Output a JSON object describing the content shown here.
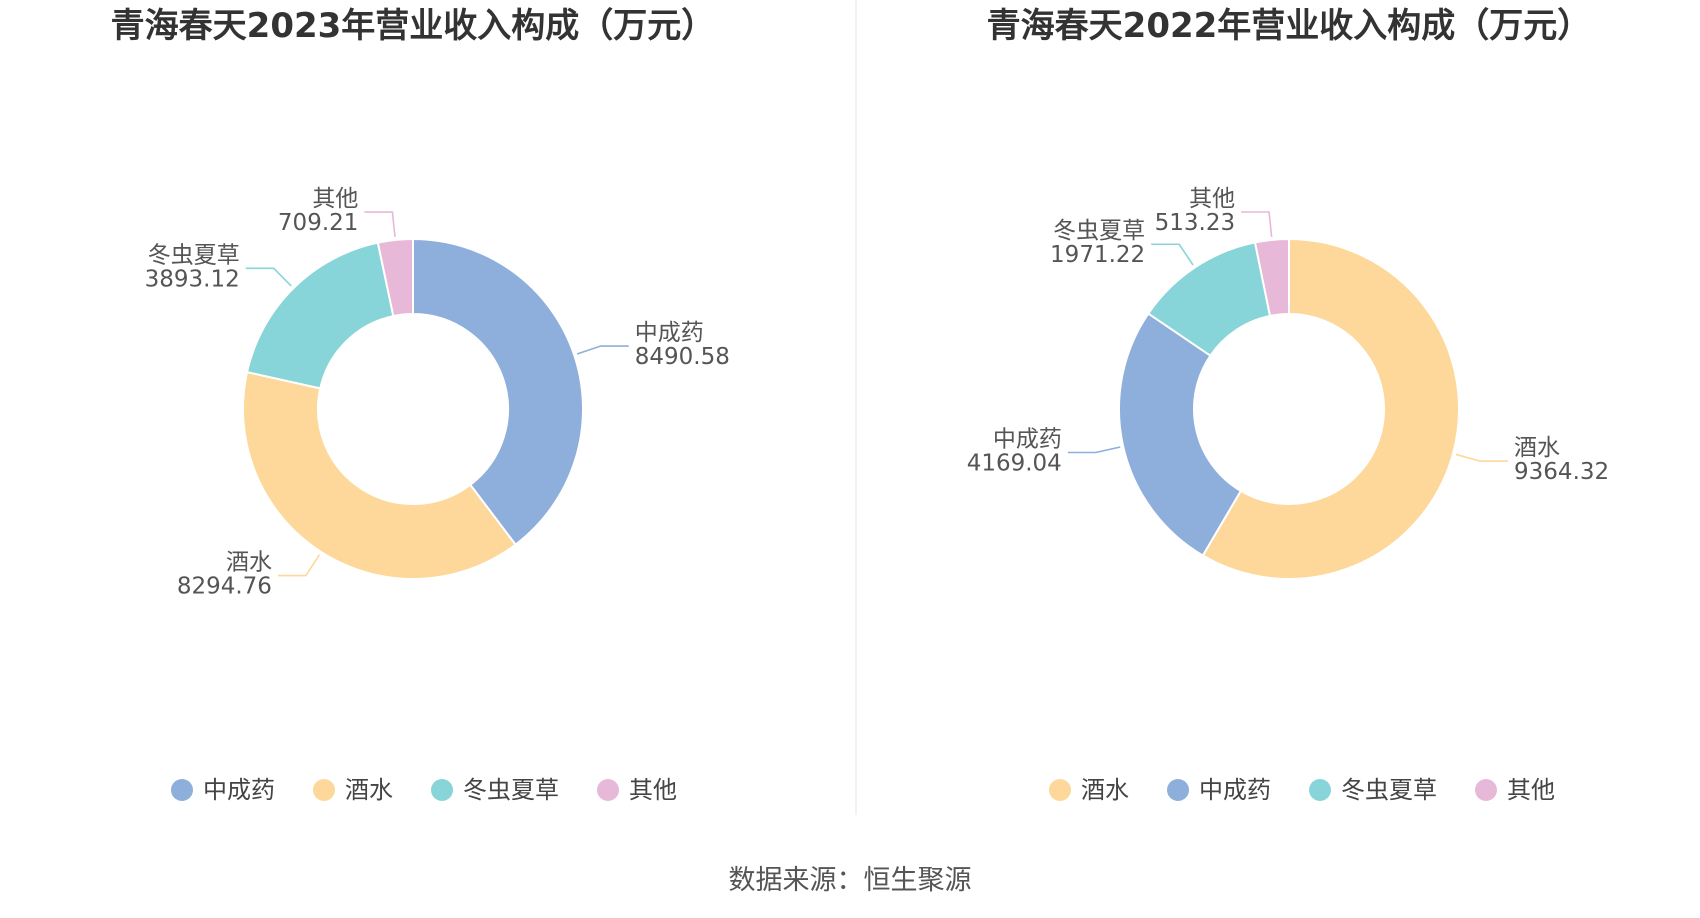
{
  "colors": {
    "中成药": "#8eaedc",
    "酒水": "#fdd89a",
    "冬虫夏草": "#87d5d8",
    "其他": "#e8b8d8"
  },
  "chart_data": [
    {
      "type": "pie",
      "style": "donut",
      "title": "青海春天2023年营业收入构成（万元）",
      "categories": [
        "中成药",
        "酒水",
        "冬虫夏草",
        "其他"
      ],
      "values": [
        8490.58,
        8294.76,
        3893.12,
        709.21
      ],
      "value_labels": [
        "8490.58",
        "8294.76",
        "3893.12",
        "709.21"
      ],
      "legend": {
        "placement": "bottom",
        "items": [
          "中成药",
          "酒水",
          "冬虫夏草",
          "其他"
        ]
      }
    },
    {
      "type": "pie",
      "style": "donut",
      "title": "青海春天2022年营业收入构成（万元）",
      "categories": [
        "酒水",
        "中成药",
        "冬虫夏草",
        "其他"
      ],
      "values": [
        9364.32,
        4169.04,
        1971.22,
        513.23
      ],
      "value_labels": [
        "9364.32",
        "4169.04",
        "1971.22",
        "513.23"
      ],
      "legend": {
        "placement": "bottom",
        "items": [
          "酒水",
          "中成药",
          "冬虫夏草",
          "其他"
        ]
      }
    }
  ],
  "source": "数据来源：恒生聚源"
}
